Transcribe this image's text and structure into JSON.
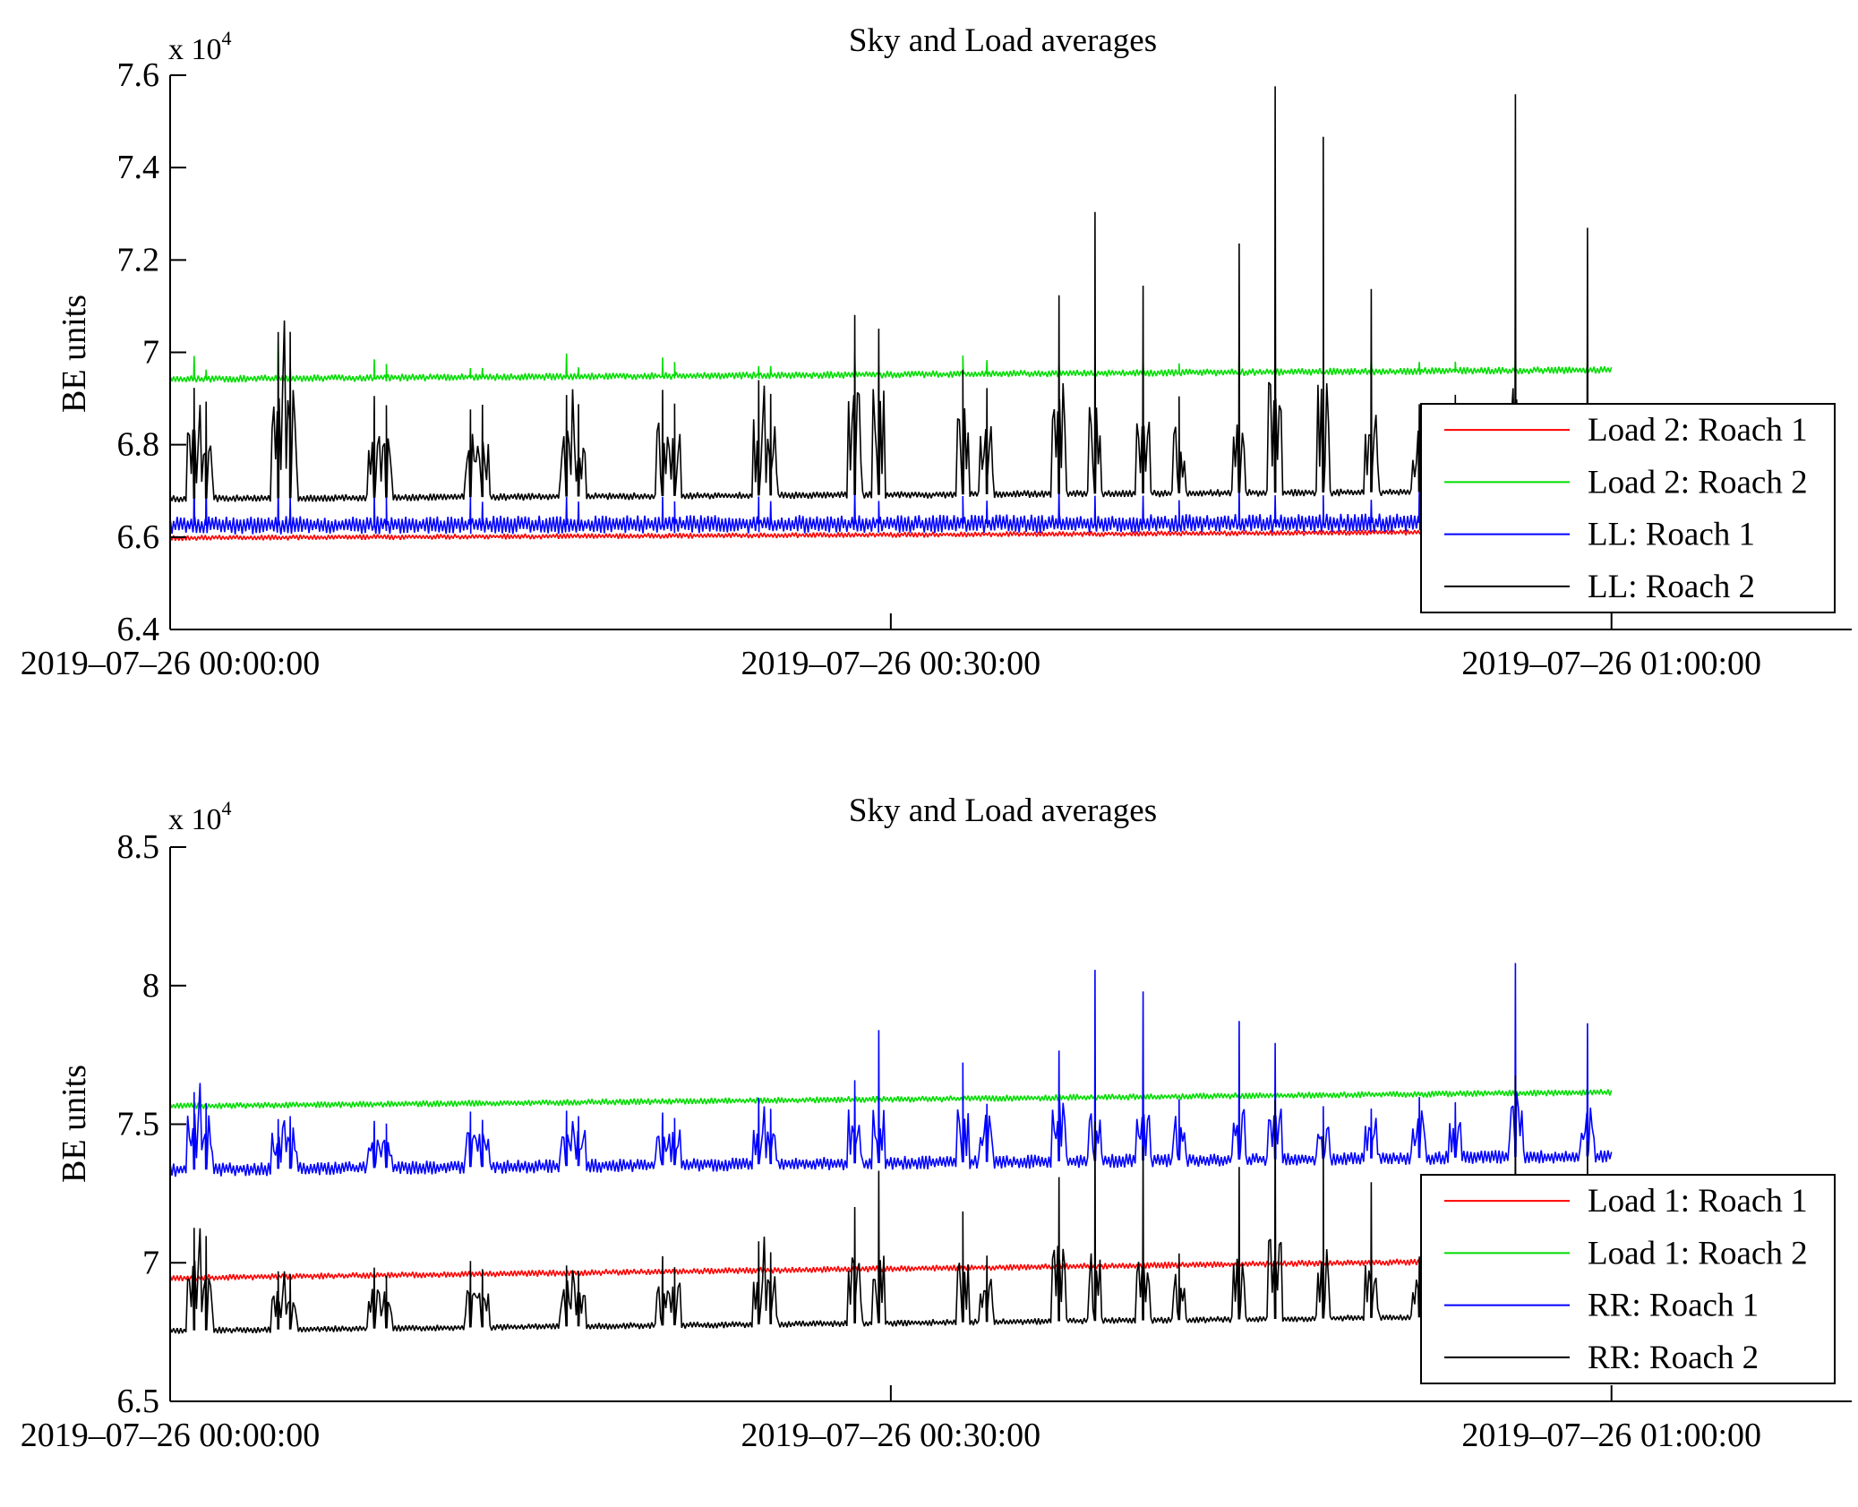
{
  "chart_data": [
    {
      "type": "line",
      "title": "Sky and Load averages",
      "ylabel": "BE units",
      "xlabel": "",
      "y_multiplier": {
        "base": "x 10",
        "exponent": "4"
      },
      "ylim": [
        6.4,
        7.6
      ],
      "yticks": [
        6.4,
        6.6,
        6.8,
        7,
        7.2,
        7.4,
        7.6
      ],
      "ytick_labels": [
        "6.4",
        "6.6",
        "6.8",
        "7",
        "7.2",
        "7.4",
        "7.6"
      ],
      "xlim_minutes": [
        0,
        70
      ],
      "xticks_minutes": [
        0,
        30,
        60
      ],
      "xtick_labels": [
        "2019–07–26 00:00:00",
        "2019–07–26 00:30:00",
        "2019–07–26 01:00:00"
      ],
      "data_end_minutes": 60,
      "legend_position": "lower-right",
      "spike_minutes": [
        1.0,
        1.5,
        4.5,
        5.0,
        8.5,
        9.0,
        12.5,
        13.0,
        16.5,
        17.0,
        20.5,
        21.0,
        24.5,
        25.0,
        28.5,
        29.5,
        33.0,
        34.0,
        37.0,
        38.5,
        40.5,
        42.0,
        44.5,
        46.0,
        48.0,
        50.0,
        52.0,
        53.5,
        56.0,
        59.0
      ],
      "series": [
        {
          "name": "Load 2: Roach 1",
          "color": "#ff0000",
          "base_start": 6.598,
          "base_end": 6.612,
          "noise": 0.006,
          "spike_heights": [],
          "step_heights": []
        },
        {
          "name": "Load 2: Roach 2",
          "color": "#00dd00",
          "base_start": 6.942,
          "base_end": 6.962,
          "noise": 0.008,
          "spike_heights": [
            0.05,
            0.02,
            0.08,
            0.03,
            0.04,
            0.03,
            0.02,
            0.02,
            0.05,
            0.02,
            0.04,
            0.03,
            0.02,
            0.02,
            0.05,
            0.02,
            0.04,
            0.03,
            0.02,
            0.02,
            0.03,
            0.02,
            0.05,
            0.02,
            0.04,
            0.03,
            0.02,
            0.02,
            0.03,
            0.02
          ],
          "step_heights": []
        },
        {
          "name": "LL: Roach 1",
          "color": "#0000ff",
          "base_start": 6.625,
          "base_end": 6.632,
          "noise": 0.02,
          "spike_heights": [
            0.12,
            0.1,
            0.08,
            0.06,
            0.07,
            0.06,
            0.06,
            0.05,
            0.06,
            0.05,
            0.06,
            0.05,
            0.06,
            0.05,
            0.07,
            0.05,
            0.06,
            0.05,
            0.07,
            0.06,
            0.06,
            0.05,
            0.07,
            0.06,
            0.06,
            0.05,
            0.07,
            0.05,
            0.06,
            0.05
          ],
          "step_heights": []
        },
        {
          "name": "LL: Roach 2",
          "color": "#000000",
          "base_start": 6.683,
          "base_end": 6.7,
          "noise": 0.008,
          "spike_heights": [
            0.24,
            0.21,
            0.36,
            0.36,
            0.22,
            0.2,
            0.19,
            0.2,
            0.22,
            0.2,
            0.23,
            0.2,
            0.25,
            0.22,
            0.39,
            0.36,
            0.27,
            0.23,
            0.43,
            0.61,
            0.45,
            0.21,
            0.54,
            0.88,
            0.77,
            0.44,
            0.19,
            0.21,
            0.86,
            0.57
          ],
          "step_heights": [
            0.16,
            0.14,
            0.24,
            0.24,
            0.15,
            0.13,
            0.13,
            0.14,
            0.15,
            0.13,
            0.16,
            0.14,
            0.17,
            0.15,
            0.26,
            0.24,
            0.18,
            0.16,
            0.25,
            0.22,
            0.18,
            0.14,
            0.18,
            0.25,
            0.24,
            0.2,
            0.13,
            0.14,
            0.22,
            0.18
          ]
        }
      ]
    },
    {
      "type": "line",
      "title": "Sky and Load averages",
      "ylabel": "BE units",
      "xlabel": "",
      "y_multiplier": {
        "base": "x 10",
        "exponent": "4"
      },
      "ylim": [
        6.5,
        8.5
      ],
      "yticks": [
        6.5,
        7,
        7.5,
        8,
        8.5
      ],
      "ytick_labels": [
        "6.5",
        "7",
        "7.5",
        "8",
        "8.5"
      ],
      "xlim_minutes": [
        0,
        70
      ],
      "xticks_minutes": [
        0,
        30,
        60
      ],
      "xtick_labels": [
        "2019–07–26 00:00:00",
        "2019–07–26 00:30:00",
        "2019–07–26 01:00:00"
      ],
      "data_end_minutes": 60,
      "legend_position": "lower-right",
      "spike_minutes": [
        1.0,
        1.5,
        4.5,
        5.0,
        8.5,
        9.0,
        12.5,
        13.0,
        16.5,
        17.0,
        20.5,
        21.0,
        24.5,
        25.0,
        28.5,
        29.5,
        33.0,
        34.0,
        37.0,
        38.5,
        40.5,
        42.0,
        44.5,
        46.0,
        48.0,
        50.0,
        52.0,
        53.5,
        56.0,
        59.0
      ],
      "series": [
        {
          "name": "Load 1: Roach 1",
          "color": "#ff0000",
          "base_start": 6.945,
          "base_end": 7.012,
          "noise": 0.012,
          "spike_heights": [],
          "step_heights": []
        },
        {
          "name": "Load 1: Roach 2",
          "color": "#00dd00",
          "base_start": 7.565,
          "base_end": 7.615,
          "noise": 0.012,
          "spike_heights": [],
          "step_heights": []
        },
        {
          "name": "RR: Roach 1",
          "color": "#0000ff",
          "base_start": 7.335,
          "base_end": 7.385,
          "noise": 0.025,
          "spike_heights": [
            0.28,
            0.24,
            0.18,
            0.19,
            0.17,
            0.16,
            0.2,
            0.17,
            0.2,
            0.18,
            0.19,
            0.17,
            0.24,
            0.2,
            0.3,
            0.48,
            0.36,
            0.21,
            0.4,
            0.69,
            0.61,
            0.22,
            0.5,
            0.42,
            0.19,
            0.18,
            0.22,
            0.2,
            0.7,
            0.48
          ],
          "step_heights": [
            0.2,
            0.18,
            0.13,
            0.14,
            0.12,
            0.11,
            0.14,
            0.12,
            0.14,
            0.13,
            0.14,
            0.12,
            0.17,
            0.14,
            0.2,
            0.18,
            0.2,
            0.15,
            0.22,
            0.2,
            0.2,
            0.15,
            0.2,
            0.2,
            0.14,
            0.13,
            0.15,
            0.14,
            0.22,
            0.18
          ]
        },
        {
          "name": "RR: Roach 2",
          "color": "#000000",
          "base_start": 6.755,
          "base_end": 6.81,
          "noise": 0.012,
          "spike_heights": [
            0.37,
            0.34,
            0.21,
            0.2,
            0.22,
            0.19,
            0.24,
            0.21,
            0.22,
            0.2,
            0.25,
            0.21,
            0.3,
            0.26,
            0.42,
            0.55,
            0.4,
            0.24,
            0.52,
            0.72,
            0.63,
            0.24,
            0.55,
            0.79,
            0.66,
            0.49,
            0.22,
            0.25,
            0.87,
            0.63
          ],
          "step_heights": [
            0.25,
            0.23,
            0.15,
            0.14,
            0.16,
            0.14,
            0.17,
            0.15,
            0.16,
            0.14,
            0.18,
            0.15,
            0.21,
            0.18,
            0.28,
            0.25,
            0.26,
            0.17,
            0.3,
            0.25,
            0.24,
            0.17,
            0.25,
            0.3,
            0.26,
            0.22,
            0.16,
            0.18,
            0.3,
            0.25
          ]
        }
      ]
    }
  ]
}
